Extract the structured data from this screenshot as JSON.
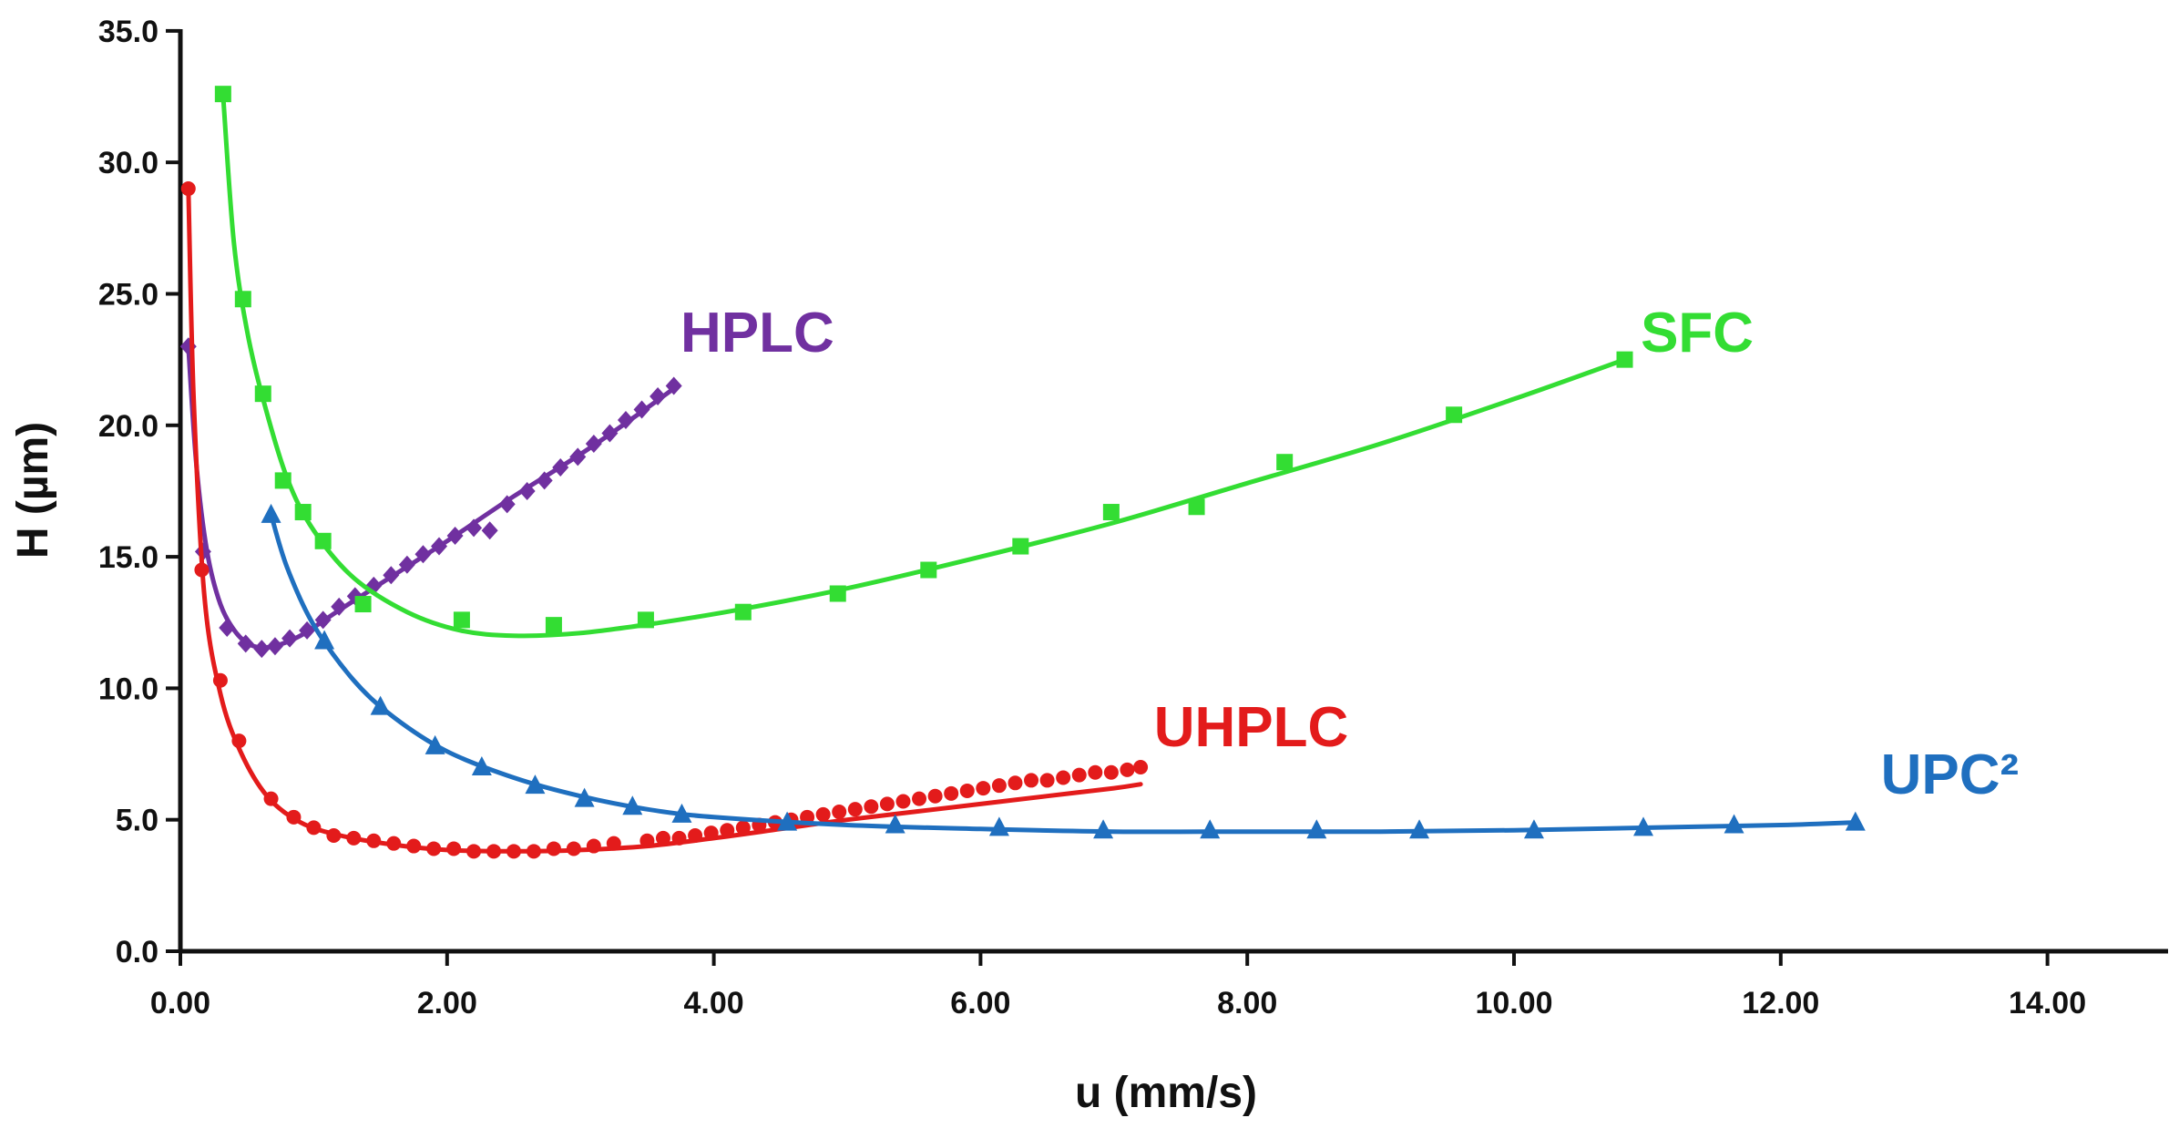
{
  "chart_data": {
    "type": "scatter",
    "xlabel": "u (mm/s)",
    "ylabel": "H (µm)",
    "xlim": [
      0,
      14.5
    ],
    "ylim": [
      0,
      35
    ],
    "x_ticks": [
      "0.00",
      "2.00",
      "4.00",
      "6.00",
      "8.00",
      "10.00",
      "12.00",
      "14.00"
    ],
    "y_ticks": [
      "0.0",
      "5.0",
      "10.0",
      "15.0",
      "20.0",
      "25.0",
      "30.0",
      "35.0"
    ],
    "grid": false,
    "legend": "none",
    "series": [
      {
        "name": "HPLC",
        "color": "#7030a0",
        "marker": "diamond",
        "label_at": [
          3.75,
          22.8
        ],
        "points": [
          [
            0.06,
            23.0
          ],
          [
            0.17,
            15.2
          ],
          [
            0.35,
            12.3
          ],
          [
            0.49,
            11.7
          ],
          [
            0.61,
            11.5
          ],
          [
            0.71,
            11.6
          ],
          [
            0.82,
            11.9
          ],
          [
            0.95,
            12.2
          ],
          [
            1.07,
            12.6
          ],
          [
            1.19,
            13.1
          ],
          [
            1.31,
            13.5
          ],
          [
            1.45,
            13.9
          ],
          [
            1.58,
            14.3
          ],
          [
            1.7,
            14.7
          ],
          [
            1.82,
            15.1
          ],
          [
            1.94,
            15.4
          ],
          [
            2.06,
            15.8
          ],
          [
            2.2,
            16.1
          ],
          [
            2.32,
            16.0
          ],
          [
            2.45,
            17.0
          ],
          [
            2.6,
            17.5
          ],
          [
            2.73,
            17.9
          ],
          [
            2.85,
            18.4
          ],
          [
            2.98,
            18.8
          ],
          [
            3.1,
            19.3
          ],
          [
            3.22,
            19.7
          ],
          [
            3.34,
            20.2
          ],
          [
            3.46,
            20.6
          ],
          [
            3.58,
            21.1
          ],
          [
            3.7,
            21.5
          ]
        ],
        "fit": [
          [
            0.06,
            23.0
          ],
          [
            0.12,
            18.5
          ],
          [
            0.2,
            15.2
          ],
          [
            0.3,
            13.2
          ],
          [
            0.42,
            12.1
          ],
          [
            0.55,
            11.6
          ],
          [
            0.7,
            11.6
          ],
          [
            0.9,
            12.0
          ],
          [
            1.2,
            13.0
          ],
          [
            1.6,
            14.3
          ],
          [
            2.0,
            15.6
          ],
          [
            2.5,
            17.3
          ],
          [
            3.0,
            18.9
          ],
          [
            3.4,
            20.3
          ],
          [
            3.7,
            21.4
          ]
        ]
      },
      {
        "name": "SFC",
        "color": "#33dd33",
        "marker": "square",
        "label_at": [
          10.95,
          22.8
        ],
        "points": [
          [
            0.32,
            32.6
          ],
          [
            0.47,
            24.8
          ],
          [
            0.62,
            21.2
          ],
          [
            0.77,
            17.9
          ],
          [
            0.92,
            16.7
          ],
          [
            1.07,
            15.6
          ],
          [
            1.37,
            13.2
          ],
          [
            2.11,
            12.6
          ],
          [
            2.8,
            12.4
          ],
          [
            3.49,
            12.6
          ],
          [
            4.22,
            12.9
          ],
          [
            4.93,
            13.6
          ],
          [
            5.61,
            14.5
          ],
          [
            6.3,
            15.4
          ],
          [
            6.98,
            16.7
          ],
          [
            7.62,
            16.9
          ],
          [
            8.28,
            18.6
          ],
          [
            9.55,
            20.4
          ],
          [
            10.83,
            22.5
          ]
        ],
        "fit": [
          [
            0.32,
            32.6
          ],
          [
            0.4,
            27.0
          ],
          [
            0.5,
            23.6
          ],
          [
            0.62,
            21.0
          ],
          [
            0.8,
            18.0
          ],
          [
            1.0,
            16.0
          ],
          [
            1.3,
            14.2
          ],
          [
            1.7,
            12.9
          ],
          [
            2.1,
            12.2
          ],
          [
            2.5,
            12.0
          ],
          [
            3.0,
            12.1
          ],
          [
            3.6,
            12.5
          ],
          [
            4.2,
            13.0
          ],
          [
            5.0,
            13.8
          ],
          [
            6.0,
            15.0
          ],
          [
            7.0,
            16.3
          ],
          [
            8.0,
            17.8
          ],
          [
            9.0,
            19.3
          ],
          [
            10.0,
            21.0
          ],
          [
            10.83,
            22.5
          ]
        ]
      },
      {
        "name": "UHPLC",
        "color": "#e31b1b",
        "marker": "circle",
        "label_at": [
          7.3,
          7.8
        ],
        "points": [
          [
            0.06,
            29.0
          ],
          [
            0.16,
            14.5
          ],
          [
            0.3,
            10.3
          ],
          [
            0.44,
            8.0
          ],
          [
            0.68,
            5.8
          ],
          [
            0.85,
            5.1
          ],
          [
            1.0,
            4.7
          ],
          [
            1.15,
            4.4
          ],
          [
            1.3,
            4.3
          ],
          [
            1.45,
            4.2
          ],
          [
            1.6,
            4.1
          ],
          [
            1.75,
            4.0
          ],
          [
            1.9,
            3.9
          ],
          [
            2.05,
            3.9
          ],
          [
            2.2,
            3.8
          ],
          [
            2.35,
            3.8
          ],
          [
            2.5,
            3.8
          ],
          [
            2.65,
            3.8
          ],
          [
            2.8,
            3.9
          ],
          [
            2.95,
            3.9
          ],
          [
            3.1,
            4.0
          ],
          [
            3.25,
            4.1
          ],
          [
            3.5,
            4.2
          ],
          [
            3.62,
            4.3
          ],
          [
            3.74,
            4.3
          ],
          [
            3.86,
            4.4
          ],
          [
            3.98,
            4.5
          ],
          [
            4.1,
            4.6
          ],
          [
            4.22,
            4.7
          ],
          [
            4.34,
            4.8
          ],
          [
            4.46,
            4.9
          ],
          [
            4.58,
            5.0
          ],
          [
            4.7,
            5.1
          ],
          [
            4.82,
            5.2
          ],
          [
            4.94,
            5.3
          ],
          [
            5.06,
            5.4
          ],
          [
            5.18,
            5.5
          ],
          [
            5.3,
            5.6
          ],
          [
            5.42,
            5.7
          ],
          [
            5.54,
            5.8
          ],
          [
            5.66,
            5.9
          ],
          [
            5.78,
            6.0
          ],
          [
            5.9,
            6.1
          ],
          [
            6.02,
            6.2
          ],
          [
            6.14,
            6.3
          ],
          [
            6.26,
            6.4
          ],
          [
            6.38,
            6.5
          ],
          [
            6.5,
            6.5
          ],
          [
            6.62,
            6.6
          ],
          [
            6.74,
            6.7
          ],
          [
            6.86,
            6.8
          ],
          [
            6.98,
            6.8
          ],
          [
            7.1,
            6.9
          ],
          [
            7.2,
            7.0
          ]
        ],
        "fit": [
          [
            0.06,
            29.0
          ],
          [
            0.1,
            21.0
          ],
          [
            0.18,
            13.5
          ],
          [
            0.3,
            9.8
          ],
          [
            0.45,
            7.6
          ],
          [
            0.65,
            5.9
          ],
          [
            0.9,
            4.9
          ],
          [
            1.2,
            4.4
          ],
          [
            1.6,
            4.05
          ],
          [
            2.0,
            3.85
          ],
          [
            2.5,
            3.8
          ],
          [
            3.0,
            3.85
          ],
          [
            3.5,
            4.0
          ],
          [
            4.0,
            4.3
          ],
          [
            4.5,
            4.65
          ],
          [
            5.0,
            5.0
          ],
          [
            5.5,
            5.3
          ],
          [
            6.0,
            5.6
          ],
          [
            6.5,
            5.9
          ],
          [
            7.0,
            6.2
          ],
          [
            7.2,
            6.35
          ]
        ]
      },
      {
        "name": "UPC²",
        "color": "#1f6fbf",
        "marker": "triangle",
        "label_at": [
          12.75,
          6.0
        ],
        "points": [
          [
            0.68,
            16.6
          ],
          [
            1.08,
            11.8
          ],
          [
            1.5,
            9.3
          ],
          [
            1.91,
            7.8
          ],
          [
            2.26,
            7.0
          ],
          [
            2.66,
            6.3
          ],
          [
            3.03,
            5.8
          ],
          [
            3.39,
            5.5
          ],
          [
            3.76,
            5.2
          ],
          [
            4.55,
            4.9
          ],
          [
            5.36,
            4.8
          ],
          [
            6.14,
            4.7
          ],
          [
            6.92,
            4.6
          ],
          [
            7.72,
            4.6
          ],
          [
            8.52,
            4.6
          ],
          [
            9.29,
            4.6
          ],
          [
            10.15,
            4.6
          ],
          [
            10.97,
            4.7
          ],
          [
            11.65,
            4.8
          ],
          [
            12.56,
            4.9
          ]
        ],
        "fit": [
          [
            0.68,
            16.6
          ],
          [
            0.8,
            14.6
          ],
          [
            1.0,
            12.4
          ],
          [
            1.3,
            10.3
          ],
          [
            1.6,
            8.9
          ],
          [
            2.0,
            7.6
          ],
          [
            2.5,
            6.6
          ],
          [
            3.0,
            5.9
          ],
          [
            3.5,
            5.4
          ],
          [
            4.0,
            5.1
          ],
          [
            5.0,
            4.8
          ],
          [
            6.0,
            4.65
          ],
          [
            7.0,
            4.55
          ],
          [
            8.0,
            4.55
          ],
          [
            9.0,
            4.55
          ],
          [
            10.0,
            4.6
          ],
          [
            11.0,
            4.7
          ],
          [
            12.0,
            4.8
          ],
          [
            12.56,
            4.9
          ]
        ]
      }
    ]
  }
}
